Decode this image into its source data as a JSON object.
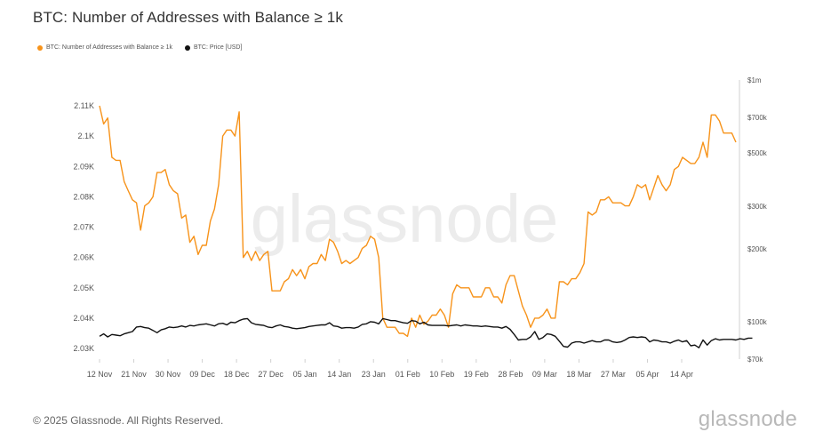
{
  "header": {
    "title": "BTC: Number of Addresses with Balance ≥ 1k"
  },
  "footer": {
    "copyright": "© 2025 Glassnode. All Rights Reserved.",
    "logo_text": "glassnode"
  },
  "watermark": "glassnode",
  "colors": {
    "addresses": "#f7931a",
    "price": "#111111",
    "grid": "#f0f0f0",
    "axis": "#d0d0d0"
  },
  "chart_data": {
    "type": "line",
    "title": "BTC: Number of Addresses with Balance ≥ 1k",
    "legend_placement": "top-left",
    "grid": false,
    "x": {
      "tick_labels": [
        "12 Nov",
        "21 Nov",
        "30 Nov",
        "09 Dec",
        "18 Dec",
        "27 Dec",
        "05 Jan",
        "14 Jan",
        "23 Jan",
        "01 Feb",
        "10 Feb",
        "19 Feb",
        "28 Feb",
        "09 Mar",
        "18 Mar",
        "27 Mar",
        "05 Apr",
        "14 Apr"
      ],
      "range": [
        "12 Nov",
        "21 Apr"
      ],
      "tick_spacing_days": 9
    },
    "y_left": {
      "tick_labels": [
        "2.03K",
        "2.04K",
        "2.05K",
        "2.06K",
        "2.07K",
        "2.08K",
        "2.09K",
        "2.1K",
        "2.11K"
      ],
      "ticks": [
        2030,
        2040,
        2050,
        2060,
        2070,
        2080,
        2090,
        2100,
        2110
      ],
      "range": [
        2026.5,
        2118.5
      ]
    },
    "y_right": {
      "scale": "log",
      "tick_labels": [
        "$70k",
        "$100k",
        "$200k",
        "$300k",
        "$500k",
        "$700k",
        "$1m"
      ],
      "ticks": [
        70000,
        100000,
        200000,
        300000,
        500000,
        700000,
        1000000
      ],
      "range": [
        70000,
        1000000
      ]
    },
    "series": [
      {
        "name": "BTC: Number of Addresses with Balance ≥ 1k",
        "axis": "left",
        "color": "#f7931a",
        "values": [
          2110,
          2104,
          2106,
          2093,
          2092,
          2092,
          2085,
          2082,
          2079,
          2078,
          2069,
          2077,
          2078,
          2080,
          2088,
          2088,
          2089,
          2084,
          2082,
          2081,
          2073,
          2074,
          2065,
          2067,
          2061,
          2064,
          2064,
          2072,
          2076,
          2084,
          2100,
          2102,
          2102,
          2100,
          2108,
          2060,
          2062,
          2059,
          2062,
          2059,
          2061,
          2062,
          2049,
          2049,
          2049,
          2052,
          2053,
          2056,
          2054,
          2056,
          2053,
          2057,
          2058,
          2058,
          2061,
          2059,
          2066,
          2065,
          2062,
          2058,
          2059,
          2058,
          2059,
          2060,
          2063,
          2064,
          2067,
          2066,
          2060,
          2040,
          2037,
          2037,
          2037,
          2035,
          2035,
          2034,
          2040,
          2037,
          2041,
          2038,
          2039,
          2041,
          2041,
          2043,
          2041,
          2037,
          2048,
          2051,
          2050,
          2050,
          2050,
          2047,
          2047,
          2047,
          2050,
          2050,
          2047,
          2047,
          2045,
          2051,
          2054,
          2054,
          2049,
          2044,
          2041,
          2037,
          2040,
          2040,
          2041,
          2043,
          2040,
          2040,
          2052,
          2052,
          2051,
          2053,
          2053,
          2055,
          2058,
          2075,
          2074,
          2075,
          2079,
          2079,
          2080,
          2078,
          2078,
          2078,
          2077,
          2077,
          2080,
          2084,
          2083,
          2084,
          2079,
          2083,
          2087,
          2084,
          2082,
          2084,
          2089,
          2090,
          2093,
          2092,
          2091,
          2091,
          2093,
          2098,
          2093,
          2107,
          2107,
          2105,
          2101,
          2101,
          2101,
          2098
        ]
      },
      {
        "name": "BTC: Price [USD]",
        "axis": "right",
        "color": "#111111",
        "values": [
          87000,
          89000,
          86500,
          88500,
          88000,
          87500,
          89000,
          90000,
          91000,
          95000,
          95500,
          94500,
          94000,
          92000,
          90000,
          92500,
          93500,
          95000,
          94500,
          95000,
          96000,
          95000,
          96500,
          96000,
          97000,
          97500,
          98000,
          97000,
          96000,
          98000,
          98500,
          97000,
          99500,
          99000,
          101000,
          102500,
          103000,
          99000,
          97500,
          97000,
          96500,
          95000,
          94500,
          96000,
          97000,
          95500,
          95000,
          94000,
          93500,
          94000,
          94500,
          95500,
          96000,
          96500,
          97000,
          97000,
          99000,
          96000,
          95500,
          94000,
          94500,
          94500,
          94000,
          95000,
          97500,
          98000,
          100000,
          99500,
          98000,
          103000,
          102000,
          101000,
          101000,
          100000,
          99000,
          98500,
          101000,
          100500,
          98000,
          99500,
          97000,
          96500,
          96500,
          96500,
          96500,
          96000,
          96500,
          97000,
          96000,
          97000,
          96500,
          96000,
          96000,
          95500,
          96000,
          95500,
          95000,
          95000,
          94000,
          95500,
          93000,
          88500,
          84000,
          84500,
          84500,
          86500,
          91000,
          84500,
          86000,
          89000,
          88500,
          87000,
          83000,
          79000,
          78500,
          81500,
          82500,
          82500,
          81500,
          82500,
          83500,
          82500,
          82500,
          84000,
          84000,
          82500,
          82000,
          82500,
          84000,
          86000,
          86500,
          86000,
          86500,
          86000,
          82500,
          84000,
          83500,
          82500,
          82500,
          81500,
          83000,
          84000,
          82500,
          83500,
          79500,
          80000,
          78000,
          84000,
          80000,
          83500,
          85000,
          84000,
          84500,
          84500,
          84500,
          84000,
          85000,
          84500,
          85500,
          85500
        ]
      }
    ]
  }
}
